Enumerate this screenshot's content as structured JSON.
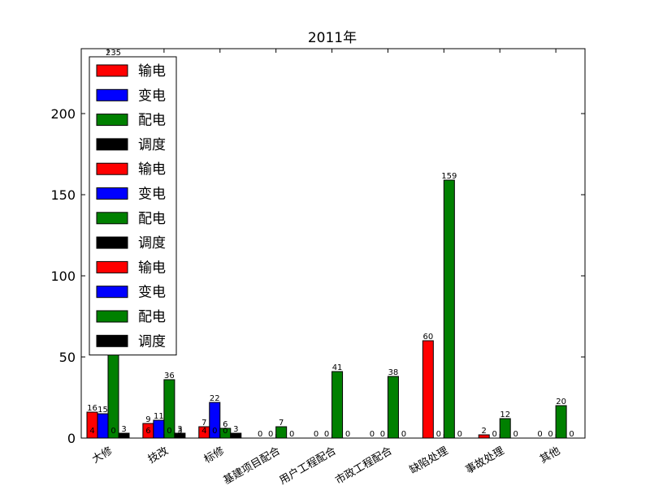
{
  "chart_data": {
    "type": "bar",
    "title": "2011年",
    "xlabel": "",
    "ylabel": "",
    "ylim": [
      0,
      240
    ],
    "yticks": [
      0,
      50,
      100,
      150,
      200
    ],
    "categories": [
      "大修",
      "技改",
      "标修",
      "基建项目配合",
      "用户工程配合",
      "市政工程配合",
      "缺陷处理",
      "事故处理",
      "其他"
    ],
    "series": [
      {
        "name": "输电",
        "color": "#ff0000",
        "values": [
          16,
          9,
          7,
          0,
          0,
          0,
          60,
          2,
          0
        ]
      },
      {
        "name": "变电",
        "color": "#0000ff",
        "values": [
          15,
          11,
          22,
          0,
          0,
          0,
          0,
          0,
          0
        ]
      },
      {
        "name": "配电",
        "color": "#008000",
        "values": [
          235,
          36,
          6,
          7,
          41,
          38,
          159,
          12,
          20
        ]
      },
      {
        "name": "调度",
        "color": "#000000",
        "values": [
          3,
          3,
          3,
          0,
          0,
          0,
          0,
          0,
          0
        ]
      }
    ],
    "overlay_labels": [
      {
        "series": 0,
        "category": 0,
        "text": "4"
      },
      {
        "series": 2,
        "category": 0,
        "text": "0"
      },
      {
        "series": 0,
        "category": 1,
        "text": "6"
      },
      {
        "series": 2,
        "category": 1,
        "text": "0"
      },
      {
        "series": 3,
        "category": 1,
        "text": "3"
      },
      {
        "series": 0,
        "category": 2,
        "text": "4"
      },
      {
        "series": 1,
        "category": 2,
        "text": "0"
      },
      {
        "series": 2,
        "category": 2,
        "text": "0"
      }
    ],
    "legend": {
      "placement": "top-left",
      "entries": [
        {
          "label": "输电",
          "color": "#ff0000"
        },
        {
          "label": "变电",
          "color": "#0000ff"
        },
        {
          "label": "配电",
          "color": "#008000"
        },
        {
          "label": "调度",
          "color": "#000000"
        },
        {
          "label": "输电",
          "color": "#ff0000"
        },
        {
          "label": "变电",
          "color": "#0000ff"
        },
        {
          "label": "配电",
          "color": "#008000"
        },
        {
          "label": "调度",
          "color": "#000000"
        },
        {
          "label": "输电",
          "color": "#ff0000"
        },
        {
          "label": "变电",
          "color": "#0000ff"
        },
        {
          "label": "配电",
          "color": "#008000"
        },
        {
          "label": "调度",
          "color": "#000000"
        }
      ]
    },
    "grid": false
  }
}
